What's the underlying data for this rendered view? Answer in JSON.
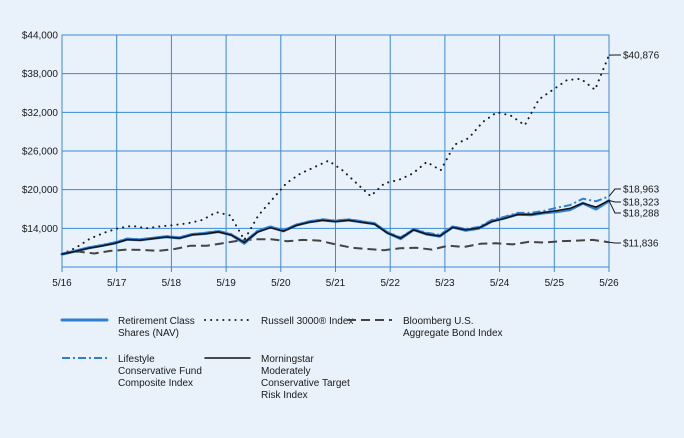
{
  "chart_data": {
    "type": "line",
    "title": "",
    "xlabel": "",
    "ylabel": "",
    "x_ticks": [
      "5/16",
      "5/17",
      "5/18",
      "5/19",
      "5/20",
      "5/21",
      "5/22",
      "5/23",
      "5/24",
      "5/25",
      "5/26"
    ],
    "y_ticks": [
      "$44,000",
      "$38,000",
      "$32,000",
      "$26,000",
      "$20,000",
      "$14,000"
    ],
    "y_tick_values": [
      44000,
      38000,
      32000,
      26000,
      20000,
      14000
    ],
    "ylim": [
      8000,
      44000
    ],
    "grid": true,
    "legend_position": "bottom",
    "series": [
      {
        "name": "Retirement Class Shares (NAV)",
        "style": "solid-thick",
        "color": "#2f7fd0",
        "end_label": "$18,288",
        "values": [
          10000,
          10450,
          10950,
          11300,
          11700,
          12300,
          12200,
          12450,
          12700,
          12500,
          13050,
          13200,
          13500,
          13000,
          11700,
          13500,
          14200,
          13600,
          14500,
          15000,
          15300,
          15100,
          15300,
          15000,
          14700,
          13300,
          12400,
          13800,
          13100,
          12800,
          14200,
          13700,
          14000,
          15100,
          15600,
          16200,
          16100,
          16400,
          16600,
          16900,
          17900,
          17000,
          18288
        ]
      },
      {
        "name": "Russell 3000® Index",
        "style": "dotted",
        "color": "#1a1a1a",
        "end_label": "$40,876",
        "values": [
          10000,
          11000,
          12400,
          13300,
          14000,
          14400,
          14000,
          14300,
          14500,
          14800,
          15300,
          16500,
          16000,
          12200,
          16000,
          18500,
          21000,
          22500,
          23500,
          24500,
          23000,
          21000,
          19000,
          21000,
          21500,
          22500,
          24300,
          23000,
          27000,
          28000,
          30500,
          32000,
          31500,
          30000,
          34000,
          35500,
          37000,
          37200,
          35500,
          40876
        ]
      },
      {
        "name": "Bloomberg U.S. Aggregate Bond Index",
        "style": "dashed",
        "color": "#444444",
        "end_label": "$11,836",
        "values": [
          10000,
          10400,
          10100,
          10500,
          10700,
          10650,
          10500,
          10800,
          11300,
          11300,
          11700,
          12100,
          12300,
          12300,
          12000,
          12200,
          12100,
          11500,
          11000,
          10800,
          10600,
          10900,
          11000,
          10700,
          11300,
          11100,
          11600,
          11700,
          11500,
          11900,
          11800,
          12000,
          12100,
          12200,
          11836
        ]
      },
      {
        "name": "Lifestyle Conservative Fund Composite Index",
        "style": "dashdot",
        "color": "#2f7fd0",
        "end_label": "$18,963",
        "values": [
          10000,
          10500,
          11000,
          11400,
          11800,
          12400,
          12300,
          12500,
          12800,
          12600,
          13100,
          13300,
          13600,
          13100,
          11900,
          13600,
          14300,
          13700,
          14600,
          15100,
          15400,
          15200,
          15400,
          15100,
          14800,
          13400,
          12600,
          13900,
          13300,
          13000,
          14300,
          13900,
          14200,
          15300,
          15800,
          16400,
          16400,
          16700,
          17200,
          17600,
          18600,
          18200,
          18963
        ]
      },
      {
        "name": "Morningstar Moderately Conservative Target Risk Index",
        "style": "solid-thin",
        "color": "#111111",
        "end_label": "$18,323",
        "values": [
          10000,
          10400,
          10900,
          11250,
          11650,
          12250,
          12150,
          12400,
          12650,
          12450,
          13000,
          13150,
          13450,
          12950,
          11800,
          13400,
          14100,
          13550,
          14450,
          14950,
          15250,
          15050,
          15250,
          14950,
          14650,
          13250,
          12450,
          13750,
          13100,
          12800,
          14150,
          13750,
          14050,
          15050,
          15550,
          16150,
          16150,
          16450,
          16750,
          17100,
          17900,
          17300,
          18323
        ]
      }
    ],
    "legend": [
      {
        "lines": [
          "Retirement Class",
          "Shares (NAV)"
        ],
        "series": 0
      },
      {
        "lines": [
          "Russell 3000® Index"
        ],
        "series": 1
      },
      {
        "lines": [
          "Bloomberg U.S.",
          "Aggregate Bond Index"
        ],
        "series": 2
      },
      {
        "lines": [
          "Lifestyle",
          "Conservative Fund",
          "Composite Index"
        ],
        "series": 3
      },
      {
        "lines": [
          "Morningstar",
          "Moderately",
          "Conservative Target",
          "Risk Index"
        ],
        "series": 4
      }
    ]
  }
}
